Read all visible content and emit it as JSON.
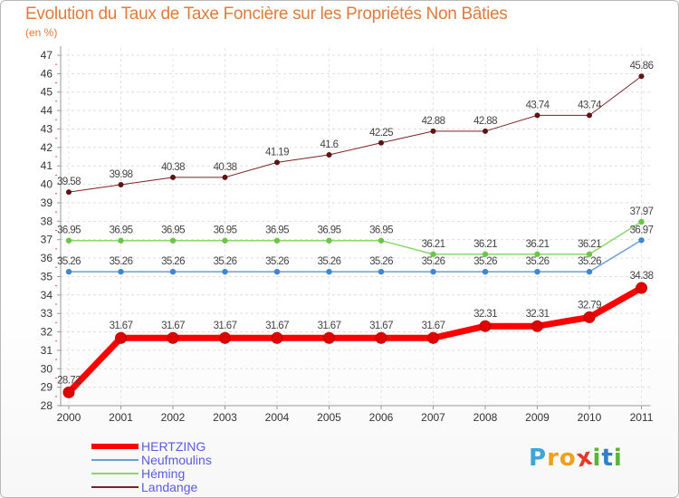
{
  "header": {
    "title": "Evolution du Taux de Taxe Foncière sur les Propriétés Non Bâties",
    "subtitle": "(en %)"
  },
  "logo": {
    "text": "Proxiti",
    "letters": [
      "P",
      "r",
      "o",
      "x",
      "i",
      "t",
      "i"
    ],
    "colors": [
      "#3fa5d8",
      "#f0a11c",
      "#f0a11c",
      "#e23b2a",
      "#5db33a",
      "#2f80c5",
      "#5db33a"
    ]
  },
  "chart_data": {
    "type": "line",
    "title": "Evolution du Taux de Taxe Foncière sur les Propriétés Non Bâties",
    "ylabel": "(en %)",
    "xlabel": "",
    "categories": [
      "2000",
      "2001",
      "2002",
      "2003",
      "2004",
      "2005",
      "2006",
      "2007",
      "2008",
      "2009",
      "2010",
      "2011"
    ],
    "ylim": [
      28,
      47
    ],
    "yticks": [
      28,
      29,
      30,
      31,
      32,
      33,
      34,
      35,
      36,
      37,
      38,
      39,
      40,
      41,
      42,
      43,
      44,
      45,
      46,
      47
    ],
    "grid": true,
    "legend_position": "bottom-left",
    "series": [
      {
        "name": "Landange",
        "color": "#7b2222",
        "marker": "#5c1414",
        "width": 1,
        "values": [
          39.58,
          39.98,
          40.38,
          40.38,
          41.19,
          41.6,
          42.25,
          42.88,
          42.88,
          43.74,
          43.74,
          45.86
        ],
        "labels": [
          "39.58",
          "39.98",
          "40.38",
          "40.38",
          "41.19",
          "41.6",
          "42.25",
          "42.88",
          "42.88",
          "43.74",
          "43.74",
          "45.86"
        ]
      },
      {
        "name": "Héming",
        "color": "#8ad86a",
        "marker": "#6cc449",
        "width": 1.5,
        "values": [
          36.95,
          36.95,
          36.95,
          36.95,
          36.95,
          36.95,
          36.95,
          36.21,
          36.21,
          36.21,
          36.21,
          37.97
        ],
        "labels": [
          "36.95",
          "36.95",
          "36.95",
          "36.95",
          "36.95",
          "36.95",
          "36.95",
          "36.21",
          "36.21",
          "36.21",
          "36.21",
          "37.97"
        ]
      },
      {
        "name": "Neufmoulins",
        "color": "#6a9fd4",
        "marker": "#3f86cc",
        "width": 1.5,
        "values": [
          35.26,
          35.26,
          35.26,
          35.26,
          35.26,
          35.26,
          35.26,
          35.26,
          35.26,
          35.26,
          35.26,
          36.97
        ],
        "labels": [
          "35.26",
          "35.26",
          "35.26",
          "35.26",
          "35.26",
          "35.26",
          "35.26",
          "35.26",
          "35.26",
          "35.26",
          "35.26",
          "36.97"
        ]
      },
      {
        "name": "HERTZING",
        "color": "#ff0000",
        "marker": "#e00000",
        "width": 7,
        "values": [
          28.72,
          31.67,
          31.67,
          31.67,
          31.67,
          31.67,
          31.67,
          31.67,
          32.31,
          32.31,
          32.79,
          34.38
        ],
        "labels": [
          "28.72",
          "31.67",
          "31.67",
          "31.67",
          "31.67",
          "31.67",
          "31.67",
          "31.67",
          "32.31",
          "32.31",
          "32.79",
          "34.38"
        ]
      }
    ],
    "legend": [
      "HERTZING",
      "Neufmoulins",
      "Héming",
      "Landange"
    ]
  }
}
